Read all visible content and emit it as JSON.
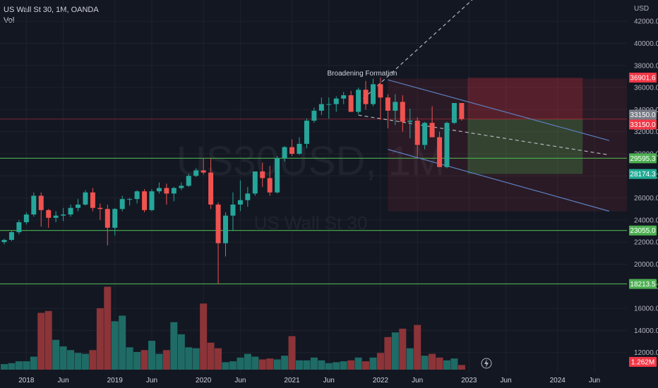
{
  "legend": {
    "symbol": "US Wall St 30, 1M, OANDA",
    "volume_label": "Vol"
  },
  "chart_data": {
    "type": "candlestick",
    "currency": "USD",
    "y_ticks": [
      12000,
      14000,
      16000,
      18000,
      20000,
      22000,
      24000,
      26000,
      28000,
      30000,
      32000,
      34000,
      36000,
      38000,
      40000,
      42000
    ],
    "ylim": [
      11300,
      45500
    ],
    "x_ticks": [
      {
        "label": "2018",
        "index": 3
      },
      {
        "label": "Jun",
        "index": 8
      },
      {
        "label": "2019",
        "index": 15
      },
      {
        "label": "Jun",
        "index": 20
      },
      {
        "label": "2020",
        "index": 27
      },
      {
        "label": "Jun",
        "index": 32
      },
      {
        "label": "2021",
        "index": 39
      },
      {
        "label": "Jun",
        "index": 44
      },
      {
        "label": "2022",
        "index": 51
      },
      {
        "label": "Jun",
        "index": 56
      },
      {
        "label": "2023",
        "index": 63
      },
      {
        "label": "Jun",
        "index": 68
      },
      {
        "label": "2024",
        "index": 75
      },
      {
        "label": "Jun",
        "index": 80
      }
    ],
    "candles": [
      [
        22000,
        22300,
        21800,
        22200
      ],
      [
        22200,
        23000,
        22100,
        22900
      ],
      [
        22900,
        24000,
        22700,
        23800
      ],
      [
        23800,
        24700,
        23600,
        24500
      ],
      [
        24500,
        26500,
        24300,
        26200
      ],
      [
        26200,
        26500,
        23400,
        24900
      ],
      [
        24900,
        25000,
        23300,
        24200
      ],
      [
        24200,
        24800,
        23800,
        24400
      ],
      [
        24400,
        25100,
        23900,
        24500
      ],
      [
        24500,
        25400,
        24300,
        25100
      ],
      [
        25100,
        25900,
        24800,
        25400
      ],
      [
        25400,
        26700,
        25300,
        26500
      ],
      [
        26500,
        26900,
        24800,
        25100
      ],
      [
        25100,
        25500,
        24000,
        25000
      ],
      [
        25000,
        25400,
        21700,
        23300
      ],
      [
        23300,
        25100,
        22600,
        25000
      ],
      [
        25000,
        26200,
        24800,
        25900
      ],
      [
        25900,
        26000,
        25300,
        25900
      ],
      [
        25900,
        26700,
        25500,
        26600
      ],
      [
        26600,
        26800,
        24700,
        24900
      ],
      [
        24900,
        26800,
        24800,
        26600
      ],
      [
        26600,
        27400,
        26400,
        26900
      ],
      [
        26900,
        27300,
        25400,
        26400
      ],
      [
        26400,
        27000,
        25700,
        26900
      ],
      [
        26900,
        27400,
        26700,
        27100
      ],
      [
        27100,
        28200,
        27000,
        28000
      ],
      [
        28000,
        28700,
        27900,
        28500
      ],
      [
        28500,
        29600,
        28100,
        28300
      ],
      [
        28300,
        29600,
        25000,
        25400
      ],
      [
        25400,
        25600,
        18200,
        21900
      ],
      [
        21900,
        24700,
        20700,
        24400
      ],
      [
        24400,
        26500,
        23000,
        25400
      ],
      [
        25400,
        27600,
        24800,
        25800
      ],
      [
        25800,
        27000,
        25200,
        26400
      ],
      [
        26400,
        28400,
        26200,
        28400
      ],
      [
        28400,
        29200,
        27000,
        27800
      ],
      [
        27800,
        28900,
        26200,
        26500
      ],
      [
        26500,
        29800,
        26400,
        29600
      ],
      [
        29600,
        30700,
        29300,
        30600
      ],
      [
        30600,
        31300,
        29800,
        30000
      ],
      [
        30000,
        31500,
        29900,
        30900
      ],
      [
        30900,
        33200,
        30500,
        33000
      ],
      [
        33000,
        34200,
        32800,
        33900
      ],
      [
        33900,
        35100,
        33500,
        34500
      ],
      [
        34500,
        35100,
        33200,
        34500
      ],
      [
        34500,
        35200,
        33800,
        35000
      ],
      [
        35000,
        35600,
        34500,
        35300
      ],
      [
        35300,
        35700,
        33800,
        33800
      ],
      [
        33800,
        36000,
        33600,
        35800
      ],
      [
        35800,
        36600,
        34000,
        34500
      ],
      [
        34500,
        36800,
        34300,
        36300
      ],
      [
        36300,
        36900,
        33100,
        35100
      ],
      [
        35100,
        35400,
        32300,
        33900
      ],
      [
        33900,
        35400,
        32600,
        34700
      ],
      [
        34700,
        35300,
        32000,
        32900
      ],
      [
        32900,
        34100,
        31400,
        33000
      ],
      [
        33000,
        33300,
        29600,
        30800
      ],
      [
        30800,
        32900,
        30400,
        32800
      ],
      [
        32800,
        34300,
        31500,
        31500
      ],
      [
        31500,
        32000,
        28800,
        28800
      ],
      [
        28800,
        32900,
        28700,
        32800
      ],
      [
        32800,
        34600,
        32700,
        34600
      ],
      [
        34600,
        34600,
        33000,
        33150
      ]
    ],
    "volume_scale_max": 1.0,
    "volumes": [
      0.06,
      0.07,
      0.09,
      0.09,
      0.14,
      0.61,
      0.63,
      0.32,
      0.25,
      0.21,
      0.18,
      0.17,
      0.21,
      0.66,
      0.89,
      0.52,
      0.58,
      0.24,
      0.19,
      0.21,
      0.31,
      0.17,
      0.21,
      0.51,
      0.38,
      0.24,
      0.23,
      0.71,
      0.29,
      0.23,
      0.08,
      0.09,
      0.13,
      0.17,
      0.14,
      0.11,
      0.12,
      0.11,
      0.15,
      0.36,
      0.1,
      0.1,
      0.13,
      0.1,
      0.07,
      0.08,
      0.09,
      0.1,
      0.13,
      0.09,
      0.13,
      0.18,
      0.35,
      0.4,
      0.44,
      0.23,
      0.48,
      0.15,
      0.17,
      0.13,
      0.1,
      0.12,
      0.05
    ],
    "horizontal_levels": [
      29595.3,
      23055.0,
      18213.5
    ],
    "price_tags": [
      {
        "label": "36901.6",
        "value": 36901.6,
        "bg": "#f23645",
        "fg": "#ffffff"
      },
      {
        "label": "33150.0",
        "value": 33550.0,
        "bg": "#787b86",
        "fg": "#ffffff"
      },
      {
        "label": "33150.0",
        "value": 32650.0,
        "bg": "#f23645",
        "fg": "#ffffff"
      },
      {
        "label": "29595.3",
        "value": 29595.3,
        "bg": "#4caf50",
        "fg": "#ffffff"
      },
      {
        "label": "28174.3",
        "value": 28174.3,
        "bg": "#22ab94",
        "fg": "#ffffff"
      },
      {
        "label": "23055.0",
        "value": 23055.0,
        "bg": "#4caf50",
        "fg": "#ffffff"
      },
      {
        "label": "18213.5",
        "value": 18213.5,
        "bg": "#4caf50",
        "fg": "#ffffff"
      }
    ],
    "volume_tag": {
      "label": "1.262M",
      "bg": "#f23645"
    },
    "annotation": {
      "text": "Broadening Formation"
    },
    "channel": {
      "upper": [
        [
          52,
          36700
        ],
        [
          82,
          31200
        ]
      ],
      "lower": [
        [
          52,
          30400
        ],
        [
          82,
          24800
        ]
      ],
      "midline": [
        [
          48,
          33500
        ],
        [
          82,
          29900
        ]
      ],
      "broadening_upper": [
        [
          48,
          34600
        ],
        [
          66,
          45500
        ]
      ]
    },
    "position": {
      "entry": 33150.0,
      "stop": 36901.6,
      "target": 28174.3,
      "start_index": 63,
      "end_index": 74
    },
    "shaded_zone": {
      "from_index": 52,
      "to_index": 82,
      "top": 36800,
      "bottom": 24800
    },
    "watermark": {
      "symbol": "US30USD, 1M",
      "name": "US Wall St 30"
    },
    "colors": {
      "up": "#26a69a",
      "down": "#ef5350",
      "up_vol": "#1f6b66",
      "down_vol": "#8c3438",
      "level": "#4caf50",
      "channel": "#5b7fbf",
      "dashed": "#b2b5be"
    }
  }
}
